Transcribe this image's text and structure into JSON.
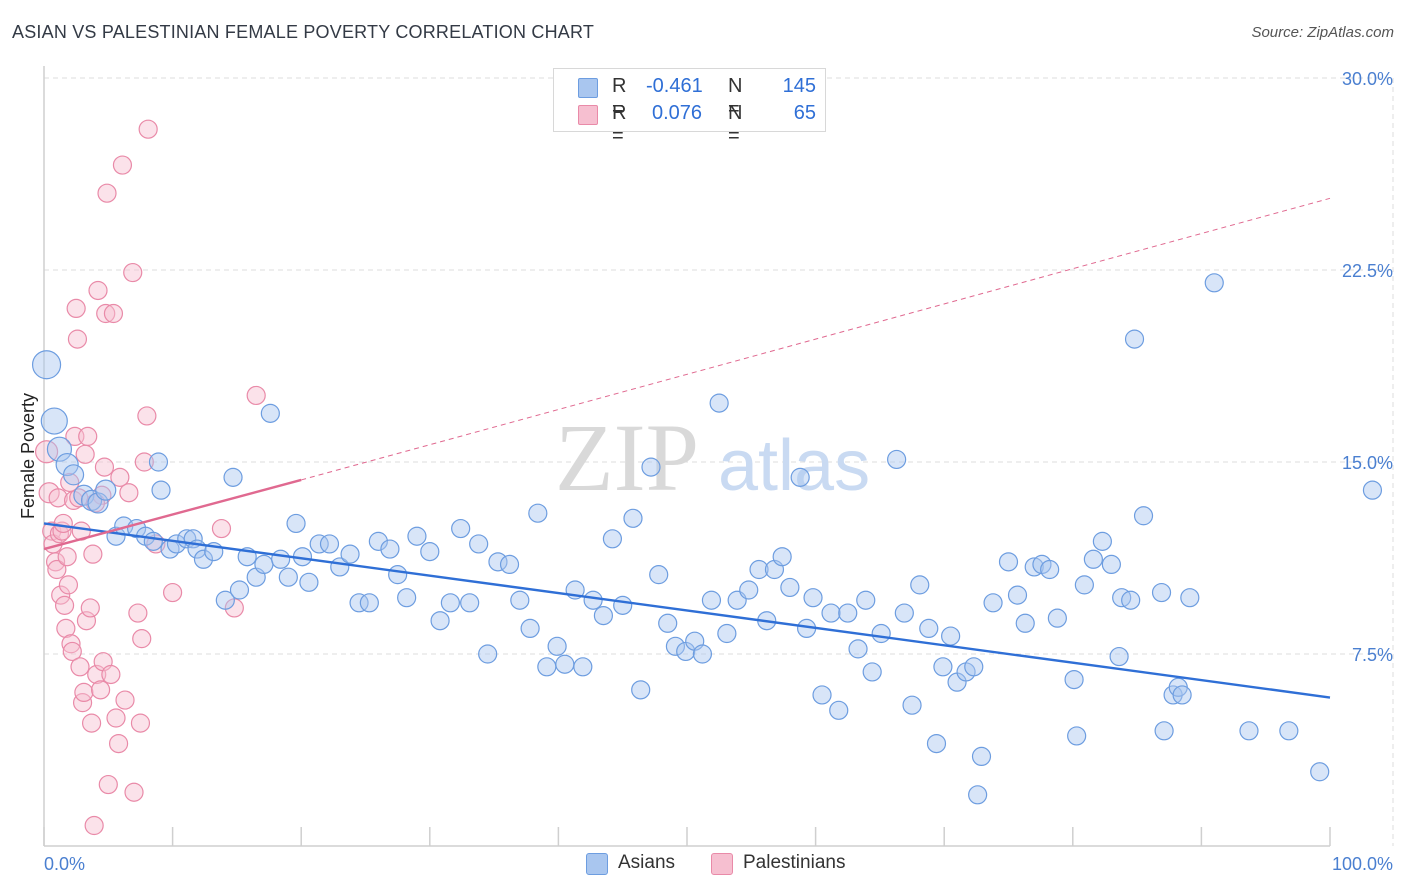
{
  "header": {
    "title": "ASIAN VS PALESTINIAN FEMALE POVERTY CORRELATION CHART",
    "source": "Source: ZipAtlas.com"
  },
  "watermark": {
    "part1": "ZIP",
    "part2": "atlas"
  },
  "legend": {
    "rows": [
      {
        "r_label": "R =",
        "r_value": "-0.461",
        "n_label": "N =",
        "n_value": "145"
      },
      {
        "r_label": "R =",
        "r_value": "0.076",
        "n_label": "N =",
        "n_value": "65"
      }
    ]
  },
  "bottom_legend": {
    "asians": "Asians",
    "palestinians": "Palestinians"
  },
  "colors": {
    "asian_fill": "#a9c6ef",
    "asian_stroke": "#6d9de0",
    "asian_line": "#2f6fd6",
    "pal_fill": "#f6bfd0",
    "pal_stroke": "#e98aa8",
    "pal_line": "#e06990",
    "tick_text": "#4a7fd0",
    "grid": "#dedede"
  },
  "chart_data": {
    "type": "scatter",
    "title": "ASIAN VS PALESTINIAN FEMALE POVERTY CORRELATION CHART",
    "xlabel": "",
    "ylabel": "Female Poverty",
    "xlim": [
      0,
      100
    ],
    "ylim": [
      0,
      30
    ],
    "x_tick_labels": [
      "0.0%",
      "100.0%"
    ],
    "y_ticks": [
      7.5,
      15.0,
      22.5,
      30.0
    ],
    "y_tick_labels": [
      "7.5%",
      "15.0%",
      "22.5%",
      "30.0%"
    ],
    "grid": true,
    "series": [
      {
        "name": "Asians",
        "stats": {
          "R": -0.461,
          "N": 145
        },
        "trend": {
          "x": [
            0,
            100
          ],
          "y": [
            12.6,
            5.8
          ],
          "style": "solid"
        },
        "points": [
          [
            0.2,
            18.8,
            14
          ],
          [
            0.8,
            16.6,
            13
          ],
          [
            1.2,
            15.5,
            12
          ],
          [
            1.8,
            14.9,
            11
          ],
          [
            2.3,
            14.5,
            10
          ],
          [
            3.1,
            13.7,
            10
          ],
          [
            3.7,
            13.5,
            10
          ],
          [
            4.2,
            13.4,
            10
          ],
          [
            4.8,
            13.9,
            10
          ],
          [
            5.6,
            12.1,
            9
          ],
          [
            6.2,
            12.5,
            9
          ],
          [
            7.2,
            12.4,
            9
          ],
          [
            7.9,
            12.1,
            9
          ],
          [
            8.5,
            11.9,
            9
          ],
          [
            8.9,
            15.0,
            9
          ],
          [
            9.1,
            13.9,
            9
          ],
          [
            9.8,
            11.6,
            9
          ],
          [
            10.3,
            11.8,
            9
          ],
          [
            11.1,
            12.0,
            9
          ],
          [
            11.6,
            12.0,
            9
          ],
          [
            11.9,
            11.6,
            9
          ],
          [
            12.4,
            11.2,
            9
          ],
          [
            13.2,
            11.5,
            9
          ],
          [
            14.1,
            9.6,
            9
          ],
          [
            14.7,
            14.4,
            9
          ],
          [
            15.2,
            10.0,
            9
          ],
          [
            15.8,
            11.3,
            9
          ],
          [
            16.5,
            10.5,
            9
          ],
          [
            17.1,
            11.0,
            9
          ],
          [
            17.6,
            16.9,
            9
          ],
          [
            18.4,
            11.2,
            9
          ],
          [
            19.0,
            10.5,
            9
          ],
          [
            19.6,
            12.6,
            9
          ],
          [
            20.1,
            11.3,
            9
          ],
          [
            20.6,
            10.3,
            9
          ],
          [
            21.4,
            11.8,
            9
          ],
          [
            22.2,
            11.8,
            9
          ],
          [
            23.0,
            10.9,
            9
          ],
          [
            23.8,
            11.4,
            9
          ],
          [
            24.5,
            9.5,
            9
          ],
          [
            25.3,
            9.5,
            9
          ],
          [
            26.0,
            11.9,
            9
          ],
          [
            26.9,
            11.6,
            9
          ],
          [
            27.5,
            10.6,
            9
          ],
          [
            28.2,
            9.7,
            9
          ],
          [
            29.0,
            12.1,
            9
          ],
          [
            30.0,
            11.5,
            9
          ],
          [
            30.8,
            8.8,
            9
          ],
          [
            31.6,
            9.5,
            9
          ],
          [
            32.4,
            12.4,
            9
          ],
          [
            33.1,
            9.5,
            9
          ],
          [
            33.8,
            11.8,
            9
          ],
          [
            34.5,
            7.5,
            9
          ],
          [
            35.3,
            11.1,
            9
          ],
          [
            36.2,
            11.0,
            9
          ],
          [
            37.0,
            9.6,
            9
          ],
          [
            37.8,
            8.5,
            9
          ],
          [
            38.4,
            13.0,
            9
          ],
          [
            39.1,
            7.0,
            9
          ],
          [
            39.9,
            7.8,
            9
          ],
          [
            40.5,
            7.1,
            9
          ],
          [
            41.3,
            10.0,
            9
          ],
          [
            41.9,
            7.0,
            9
          ],
          [
            42.7,
            9.6,
            9
          ],
          [
            43.5,
            9.0,
            9
          ],
          [
            44.2,
            12.0,
            9
          ],
          [
            45.0,
            9.4,
            9
          ],
          [
            45.8,
            12.8,
            9
          ],
          [
            46.4,
            6.1,
            9
          ],
          [
            47.2,
            14.8,
            9
          ],
          [
            47.8,
            10.6,
            9
          ],
          [
            48.5,
            8.7,
            9
          ],
          [
            49.1,
            7.8,
            9
          ],
          [
            49.9,
            7.6,
            9
          ],
          [
            50.6,
            8.0,
            9
          ],
          [
            51.2,
            7.5,
            9
          ],
          [
            51.9,
            9.6,
            9
          ],
          [
            52.5,
            17.3,
            9
          ],
          [
            53.1,
            8.3,
            9
          ],
          [
            53.9,
            9.6,
            9
          ],
          [
            54.8,
            10.0,
            9
          ],
          [
            55.6,
            10.8,
            9
          ],
          [
            56.2,
            8.8,
            9
          ],
          [
            56.8,
            10.8,
            9
          ],
          [
            57.4,
            11.3,
            9
          ],
          [
            58.0,
            10.1,
            9
          ],
          [
            58.8,
            14.4,
            9
          ],
          [
            59.3,
            8.5,
            9
          ],
          [
            59.8,
            9.7,
            9
          ],
          [
            60.5,
            5.9,
            9
          ],
          [
            61.2,
            9.1,
            9
          ],
          [
            61.8,
            5.3,
            9
          ],
          [
            62.5,
            9.1,
            9
          ],
          [
            63.3,
            7.7,
            9
          ],
          [
            63.9,
            9.6,
            9
          ],
          [
            64.4,
            6.8,
            9
          ],
          [
            65.1,
            8.3,
            9
          ],
          [
            66.3,
            15.1,
            9
          ],
          [
            66.9,
            9.1,
            9
          ],
          [
            67.5,
            5.5,
            9
          ],
          [
            68.1,
            10.2,
            9
          ],
          [
            68.8,
            8.5,
            9
          ],
          [
            69.4,
            4.0,
            9
          ],
          [
            69.9,
            7.0,
            9
          ],
          [
            70.5,
            8.2,
            9
          ],
          [
            71.0,
            6.4,
            9
          ],
          [
            71.7,
            6.8,
            9
          ],
          [
            72.3,
            7.0,
            9
          ],
          [
            72.9,
            3.5,
            9
          ],
          [
            72.6,
            2.0,
            9
          ],
          [
            73.8,
            9.5,
            9
          ],
          [
            75.0,
            11.1,
            9
          ],
          [
            75.7,
            9.8,
            9
          ],
          [
            76.3,
            8.7,
            9
          ],
          [
            77.0,
            10.9,
            9
          ],
          [
            77.6,
            11.0,
            9
          ],
          [
            78.2,
            10.8,
            9
          ],
          [
            78.8,
            8.9,
            9
          ],
          [
            80.1,
            6.5,
            9
          ],
          [
            80.3,
            4.3,
            9
          ],
          [
            80.9,
            10.2,
            9
          ],
          [
            81.6,
            11.2,
            9
          ],
          [
            82.3,
            11.9,
            9
          ],
          [
            83.0,
            11.0,
            9
          ],
          [
            83.6,
            7.4,
            9
          ],
          [
            83.8,
            9.7,
            9
          ],
          [
            84.5,
            9.6,
            9
          ],
          [
            84.8,
            19.8,
            9
          ],
          [
            85.5,
            12.9,
            9
          ],
          [
            86.9,
            9.9,
            9
          ],
          [
            87.1,
            4.5,
            9
          ],
          [
            87.8,
            5.9,
            9
          ],
          [
            88.2,
            6.2,
            9
          ],
          [
            88.5,
            5.9,
            9
          ],
          [
            89.1,
            9.7,
            9
          ],
          [
            91.0,
            22.0,
            9
          ],
          [
            93.7,
            4.5,
            9
          ],
          [
            96.8,
            4.5,
            9
          ],
          [
            99.2,
            2.9,
            9
          ],
          [
            103.3,
            13.9,
            9
          ]
        ]
      },
      {
        "name": "Palestinians",
        "stats": {
          "R": 0.076,
          "N": 65
        },
        "trend": {
          "x": [
            0,
            20
          ],
          "y": [
            11.6,
            14.3
          ],
          "style": "solid",
          "dashed_extension_to": [
            100,
            25.3
          ]
        },
        "points": [
          [
            0.2,
            15.4,
            11
          ],
          [
            0.4,
            13.8,
            10
          ],
          [
            0.6,
            12.3,
            9
          ],
          [
            0.7,
            11.8,
            9
          ],
          [
            0.9,
            11.1,
            9
          ],
          [
            1.0,
            10.8,
            9
          ],
          [
            1.1,
            13.6,
            9
          ],
          [
            1.2,
            12.2,
            9
          ],
          [
            1.3,
            9.8,
            9
          ],
          [
            1.4,
            12.3,
            9
          ],
          [
            1.5,
            12.6,
            9
          ],
          [
            1.6,
            9.4,
            9
          ],
          [
            1.7,
            8.5,
            9
          ],
          [
            1.8,
            11.3,
            9
          ],
          [
            1.9,
            10.2,
            9
          ],
          [
            2.0,
            14.2,
            9
          ],
          [
            2.1,
            7.9,
            9
          ],
          [
            2.2,
            7.6,
            9
          ],
          [
            2.3,
            13.5,
            9
          ],
          [
            2.4,
            16.0,
            9
          ],
          [
            2.5,
            21.0,
            9
          ],
          [
            2.6,
            19.8,
            9
          ],
          [
            2.7,
            13.6,
            9
          ],
          [
            2.8,
            7.0,
            9
          ],
          [
            2.9,
            12.3,
            9
          ],
          [
            3.0,
            5.6,
            9
          ],
          [
            3.1,
            6.0,
            9
          ],
          [
            3.2,
            15.3,
            9
          ],
          [
            3.3,
            8.8,
            9
          ],
          [
            3.4,
            16.0,
            9
          ],
          [
            3.6,
            9.3,
            9
          ],
          [
            3.7,
            4.8,
            9
          ],
          [
            3.8,
            11.4,
            9
          ],
          [
            3.9,
            0.8,
            9
          ],
          [
            4.1,
            6.7,
            9
          ],
          [
            4.2,
            21.7,
            9
          ],
          [
            4.4,
            6.1,
            9
          ],
          [
            4.5,
            13.7,
            9
          ],
          [
            4.6,
            7.2,
            9
          ],
          [
            4.7,
            14.8,
            9
          ],
          [
            4.8,
            20.8,
            9
          ],
          [
            4.9,
            25.5,
            9
          ],
          [
            5.0,
            2.4,
            9
          ],
          [
            5.2,
            6.7,
            9
          ],
          [
            5.4,
            20.8,
            9
          ],
          [
            5.6,
            5.0,
            9
          ],
          [
            5.8,
            4.0,
            9
          ],
          [
            5.9,
            14.4,
            9
          ],
          [
            6.1,
            26.6,
            9
          ],
          [
            6.3,
            5.7,
            9
          ],
          [
            6.6,
            13.8,
            9
          ],
          [
            6.9,
            22.4,
            9
          ],
          [
            7.0,
            2.1,
            9
          ],
          [
            7.3,
            9.1,
            9
          ],
          [
            7.5,
            4.8,
            9
          ],
          [
            7.6,
            8.1,
            9
          ],
          [
            7.8,
            15.0,
            9
          ],
          [
            8.0,
            16.8,
            9
          ],
          [
            8.1,
            28.0,
            9
          ],
          [
            8.7,
            11.8,
            9
          ],
          [
            10.0,
            9.9,
            9
          ],
          [
            13.8,
            12.4,
            9
          ],
          [
            14.8,
            9.3,
            9
          ],
          [
            16.5,
            17.6,
            9
          ],
          [
            4.0,
            13.4,
            9
          ]
        ]
      }
    ]
  }
}
